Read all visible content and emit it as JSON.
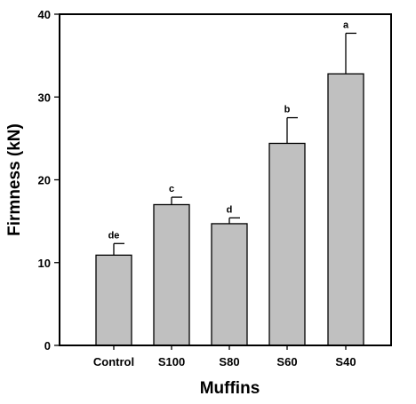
{
  "chart_data": {
    "type": "bar",
    "categories": [
      "Control",
      "S100",
      "S80",
      "S60",
      "S40"
    ],
    "values": [
      10.9,
      17.0,
      14.7,
      24.4,
      32.8
    ],
    "error": [
      1.4,
      0.9,
      0.7,
      3.1,
      4.9
    ],
    "significance": [
      "de",
      "c",
      "d",
      "b",
      "a"
    ],
    "xlabel": "Muffins",
    "ylabel": "Firmness (kN)",
    "ylim": [
      0,
      40
    ],
    "yticks": [
      0,
      10,
      20,
      30,
      40
    ],
    "bar_color": "#c0c0c0",
    "grid": false
  }
}
